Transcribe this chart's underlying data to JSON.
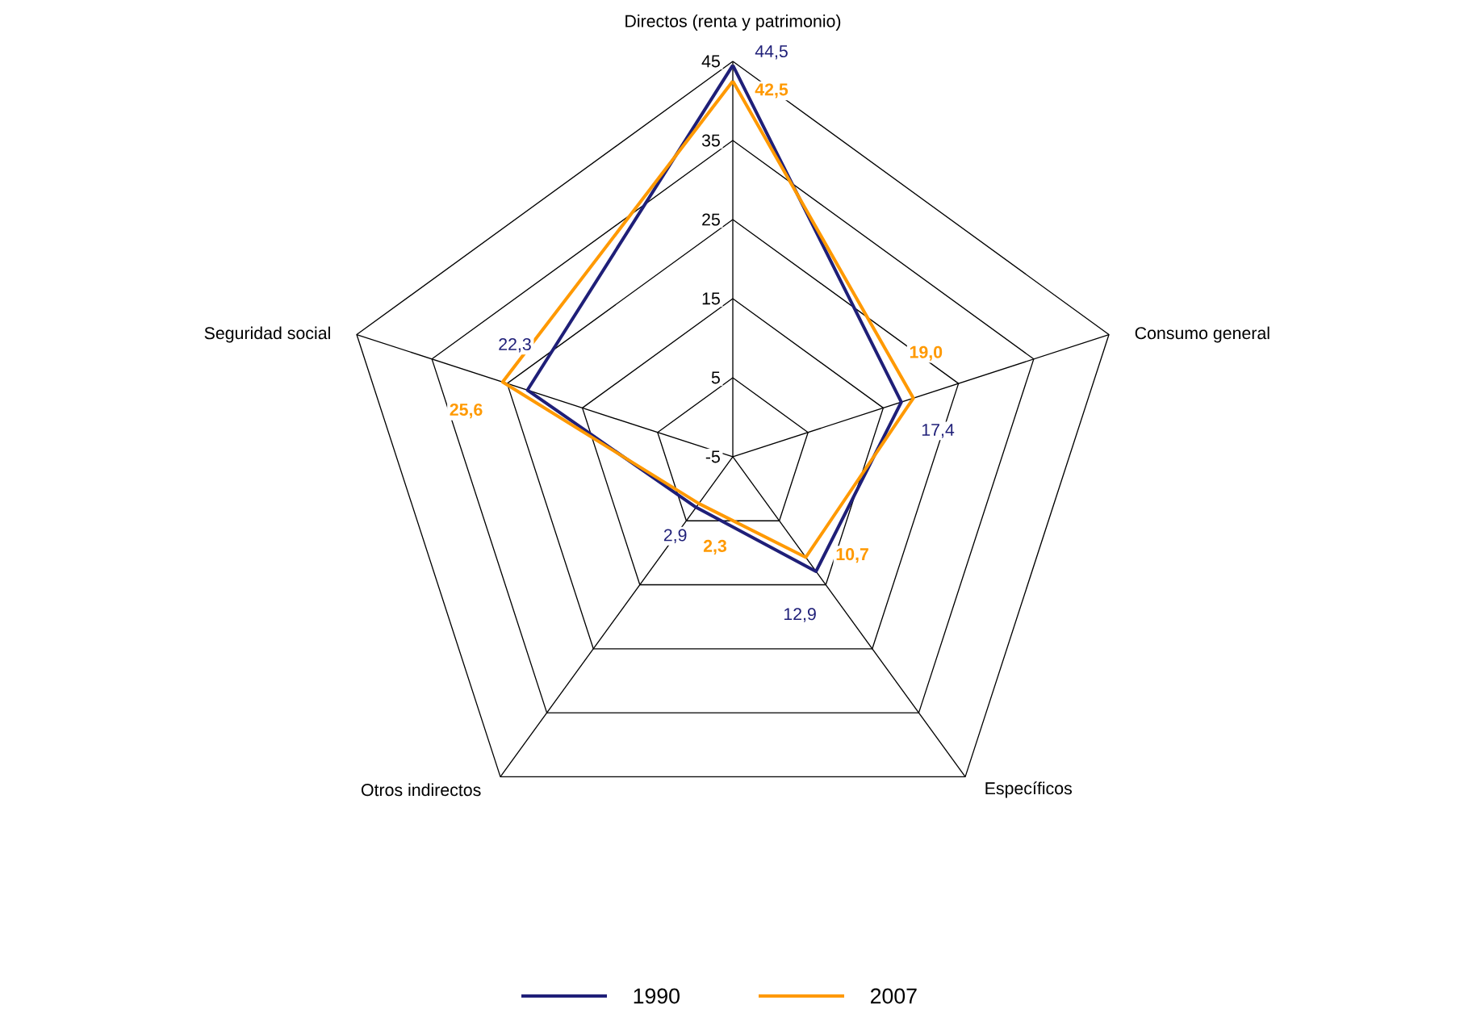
{
  "chart_data": {
    "type": "radar",
    "categories": [
      "Directos (renta y patrimonio)",
      "Consumo general",
      "Específicos",
      "Otros indirectos",
      "Seguridad social"
    ],
    "series": [
      {
        "name": "1990",
        "color": "#1f1f78",
        "values": [
          44.5,
          17.4,
          12.9,
          2.9,
          22.3
        ],
        "value_labels": [
          "44,5",
          "17,4",
          "12,9",
          "2,9",
          "22,3"
        ]
      },
      {
        "name": "2007",
        "color": "#ff9900",
        "values": [
          42.5,
          19.0,
          10.7,
          2.3,
          25.6
        ],
        "value_labels": [
          "42,5",
          "19,0",
          "10,7",
          "2,3",
          "25,6"
        ]
      }
    ],
    "ylim": [
      -5,
      45
    ],
    "yticks": [
      {
        "value": -5,
        "label": "-5"
      },
      {
        "value": 5,
        "label": "5"
      },
      {
        "value": 15,
        "label": "15"
      },
      {
        "value": 25,
        "label": "25"
      },
      {
        "value": 35,
        "label": "35"
      },
      {
        "value": 45,
        "label": "45"
      }
    ],
    "grid": true,
    "legend": "bottom"
  }
}
